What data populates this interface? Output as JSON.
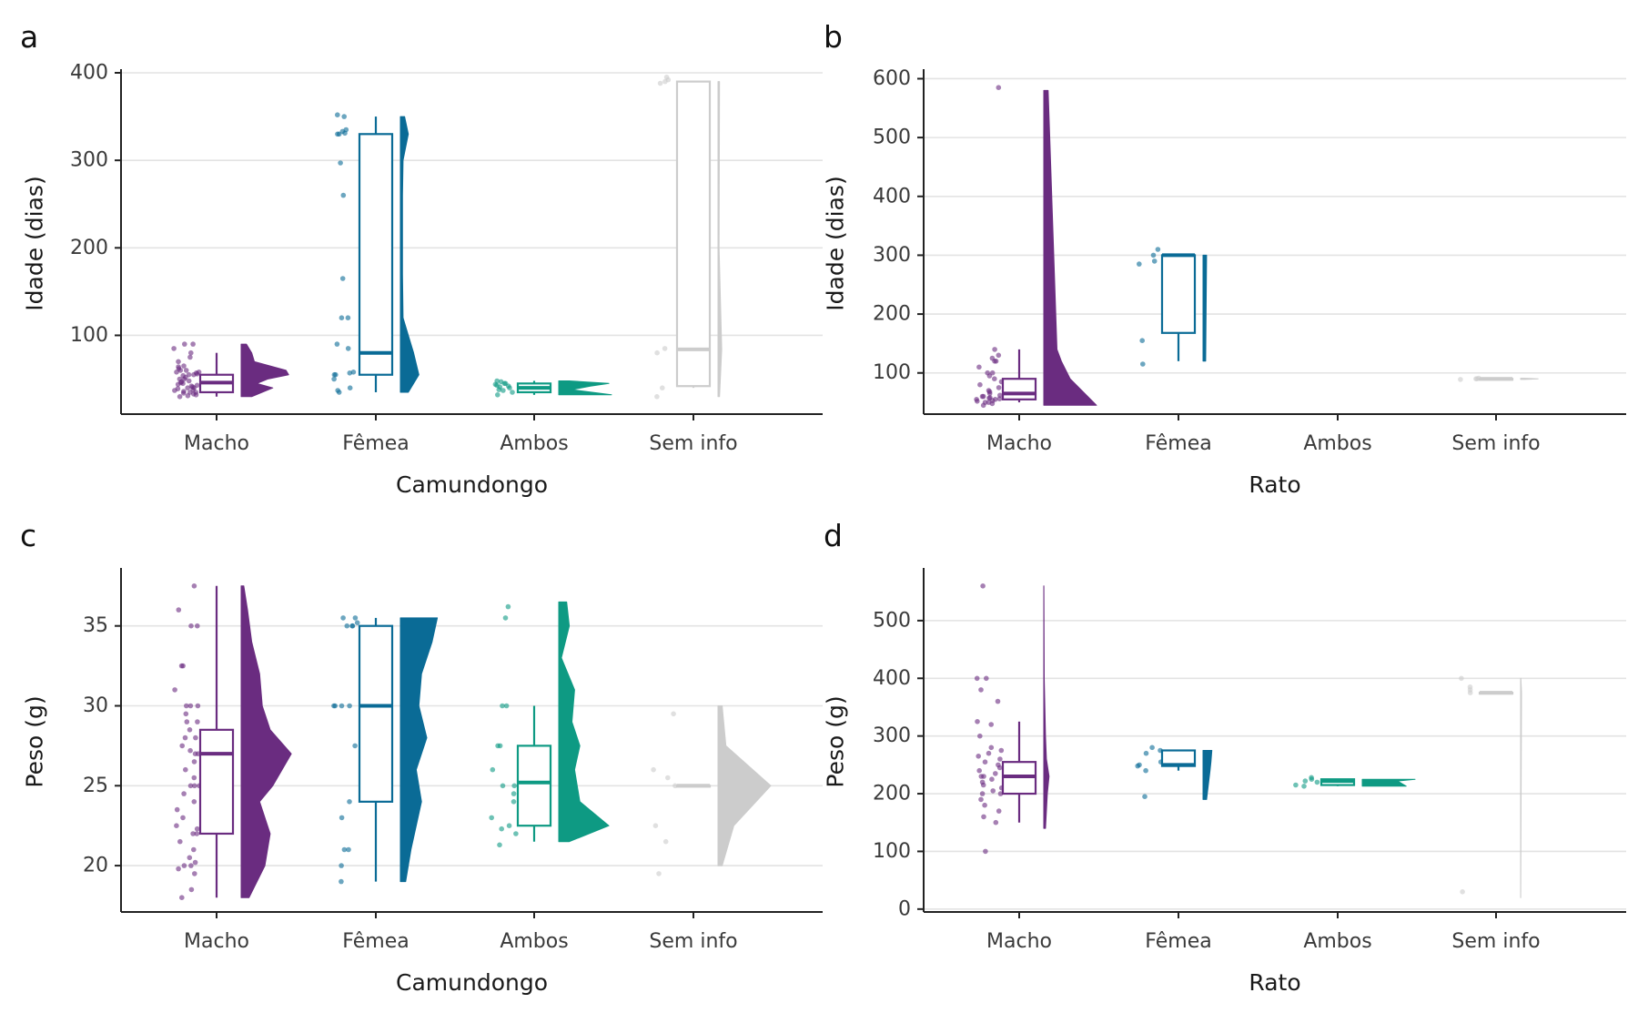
{
  "chart_data": [
    {
      "panel": "a",
      "type": "raincloud",
      "ylabel": "Idade (dias)",
      "xlabel": "Camundongo",
      "categories": [
        "Macho",
        "Fêmea",
        "Ambos",
        "Sem info"
      ],
      "ylim": [
        10,
        400
      ],
      "yticks": [
        100,
        200,
        300,
        400
      ],
      "series": [
        {
          "category": "Macho",
          "color": "#6a2c80",
          "box": {
            "min": 30,
            "q1": 35,
            "median": 46,
            "q3": 55,
            "max": 80
          },
          "density": [
            [
              30,
              0.2
            ],
            [
              40,
              0.6
            ],
            [
              45,
              0.3
            ],
            [
              50,
              0.5
            ],
            [
              55,
              0.9
            ],
            [
              60,
              0.85
            ],
            [
              70,
              0.25
            ],
            [
              80,
              0.2
            ],
            [
              90,
              0.1
            ]
          ],
          "points": [
            30,
            31,
            32,
            33,
            34,
            35,
            35,
            36,
            37,
            38,
            39,
            40,
            40,
            41,
            42,
            43,
            44,
            45,
            46,
            47,
            48,
            50,
            50,
            52,
            54,
            55,
            55,
            56,
            57,
            58,
            58,
            60,
            60,
            62,
            64,
            65,
            70,
            75,
            80,
            85,
            90,
            90
          ]
        },
        {
          "category": "Fêmea",
          "color": "#0a6b96",
          "box": {
            "min": 35,
            "q1": 55,
            "median": 80,
            "q3": 330,
            "max": 350
          },
          "density": [
            [
              35,
              0.15
            ],
            [
              55,
              0.35
            ],
            [
              80,
              0.25
            ],
            [
              120,
              0.05
            ],
            [
              170,
              0.04
            ],
            [
              260,
              0.04
            ],
            [
              300,
              0.05
            ],
            [
              330,
              0.15
            ],
            [
              350,
              0.08
            ]
          ],
          "points": [
            35,
            37,
            40,
            50,
            55,
            55,
            57,
            58,
            85,
            90,
            120,
            120,
            165,
            260,
            297,
            330,
            330,
            331,
            333,
            335,
            350,
            352
          ]
        },
        {
          "category": "Ambos",
          "color": "#0e9a83",
          "box": {
            "min": 32,
            "q1": 35,
            "median": 40,
            "q3": 45,
            "max": 48
          },
          "density": [
            [
              32,
              1.0
            ],
            [
              38,
              0.25
            ],
            [
              42,
              0.6
            ],
            [
              45,
              0.95
            ],
            [
              48,
              0.2
            ]
          ],
          "points": [
            32,
            35,
            37,
            38,
            40,
            41,
            42,
            43,
            44,
            45,
            45,
            47,
            48
          ]
        },
        {
          "category": "Sem info",
          "color": "#cccccc",
          "box": {
            "min": 40,
            "q1": 42,
            "median": 84,
            "q3": 390,
            "max": 390
          },
          "density": [
            [
              30,
              0.03
            ],
            [
              84,
              0.07
            ],
            [
              200,
              0.02
            ],
            [
              390,
              0.03
            ]
          ],
          "points": [
            30,
            40,
            80,
            85,
            388,
            390,
            392,
            395
          ]
        }
      ]
    },
    {
      "panel": "b",
      "type": "raincloud",
      "ylabel": "Idade (dias)",
      "xlabel": "Rato",
      "categories": [
        "Macho",
        "Fêmea",
        "Ambos",
        "Sem info"
      ],
      "ylim": [
        30,
        610
      ],
      "yticks": [
        100,
        200,
        300,
        400,
        500,
        600
      ],
      "series": [
        {
          "category": "Macho",
          "color": "#6a2c80",
          "box": {
            "min": 50,
            "q1": 55,
            "median": 65,
            "q3": 90,
            "max": 140
          },
          "density": [
            [
              45,
              0.06
            ],
            [
              60,
              0.05
            ],
            [
              90,
              0.03
            ],
            [
              120,
              0.02
            ],
            [
              140,
              0.015
            ],
            [
              580,
              0.005
            ]
          ],
          "points": [
            45,
            48,
            50,
            50,
            52,
            53,
            55,
            55,
            56,
            57,
            58,
            60,
            60,
            62,
            65,
            68,
            70,
            75,
            80,
            85,
            90,
            95,
            100,
            100,
            110,
            120,
            120,
            125,
            130,
            140,
            585
          ]
        },
        {
          "category": "Fêmea",
          "color": "#0a6b96",
          "box": {
            "min": 120,
            "q1": 168,
            "median": 300,
            "q3": 300,
            "max": 300
          },
          "density": [
            [
              120,
              0.003
            ],
            [
              300,
              0.004
            ]
          ],
          "points": [
            115,
            155,
            285,
            290,
            300,
            310
          ]
        },
        {
          "category": "Sem info",
          "color": "#cccccc",
          "box": {
            "min": 90,
            "q1": 90,
            "median": 90,
            "q3": 90,
            "max": 90
          },
          "density": [
            [
              89,
              0.005
            ],
            [
              90,
              0.02
            ],
            [
              91,
              0.005
            ]
          ],
          "points": [
            89,
            90,
            90,
            91
          ]
        }
      ]
    },
    {
      "panel": "c",
      "type": "raincloud",
      "ylabel": "Peso (g)",
      "xlabel": "Camundongo",
      "categories": [
        "Macho",
        "Fêmea",
        "Ambos",
        "Sem info"
      ],
      "ylim": [
        17.1,
        38.4
      ],
      "yticks": [
        20,
        25,
        30,
        35
      ],
      "series": [
        {
          "category": "Macho",
          "color": "#6a2c80",
          "box": {
            "min": 18,
            "q1": 22,
            "median": 27,
            "q3": 28.5,
            "max": 37.5
          },
          "density": [
            [
              18,
              0.15
            ],
            [
              20,
              0.45
            ],
            [
              22,
              0.55
            ],
            [
              24,
              0.35
            ],
            [
              25,
              0.6
            ],
            [
              27,
              0.95
            ],
            [
              28.5,
              0.55
            ],
            [
              30,
              0.4
            ],
            [
              32,
              0.35
            ],
            [
              34,
              0.2
            ],
            [
              36,
              0.12
            ],
            [
              37.5,
              0.05
            ]
          ],
          "points": [
            18,
            18.5,
            19.5,
            19.8,
            20,
            20,
            20.2,
            20.5,
            21,
            21.5,
            22,
            22,
            22.3,
            22.5,
            23,
            23.5,
            24,
            24.5,
            25,
            25,
            25,
            25.5,
            26,
            26.5,
            27,
            27,
            27.2,
            27.5,
            28,
            28,
            28.5,
            29,
            29,
            29.5,
            30,
            30,
            30,
            31,
            32.5,
            32.5,
            35,
            35,
            36,
            37.5
          ]
        },
        {
          "category": "Fêmea",
          "color": "#0a6b96",
          "box": {
            "min": 19,
            "q1": 24,
            "median": 30,
            "q3": 35,
            "max": 35.5
          },
          "density": [
            [
              19,
              0.1
            ],
            [
              21,
              0.2
            ],
            [
              24,
              0.4
            ],
            [
              26,
              0.3
            ],
            [
              28,
              0.5
            ],
            [
              30,
              0.35
            ],
            [
              32,
              0.4
            ],
            [
              34,
              0.6
            ],
            [
              35.5,
              0.7
            ]
          ],
          "points": [
            19,
            20,
            21,
            21,
            23,
            24,
            27.5,
            30,
            30,
            30,
            30,
            35,
            35,
            35,
            35.2,
            35.5,
            35.5
          ]
        },
        {
          "category": "Ambos",
          "color": "#0e9a83",
          "box": {
            "min": 21.5,
            "q1": 22.5,
            "median": 25.2,
            "q3": 27.5,
            "max": 30
          },
          "density": [
            [
              21.5,
              0.2
            ],
            [
              22.5,
              0.95
            ],
            [
              24,
              0.4
            ],
            [
              26,
              0.3
            ],
            [
              27.5,
              0.4
            ],
            [
              29,
              0.25
            ],
            [
              31,
              0.3
            ],
            [
              33,
              0.05
            ],
            [
              35,
              0.2
            ],
            [
              36.5,
              0.15
            ]
          ],
          "points": [
            21.3,
            22,
            22.3,
            22.5,
            23,
            24,
            24.5,
            25,
            25,
            26,
            27.5,
            27.5,
            30,
            30,
            35.5,
            36.2
          ]
        },
        {
          "category": "Sem info",
          "color": "#cccccc",
          "box": {
            "min": 25,
            "q1": 25,
            "median": 25,
            "q3": 25,
            "max": 25
          },
          "density": [
            [
              20,
              0.08
            ],
            [
              22.5,
              0.3
            ],
            [
              25,
              1.0
            ],
            [
              27.5,
              0.15
            ],
            [
              30,
              0.08
            ]
          ],
          "points": [
            19.5,
            21.5,
            22.5,
            25,
            25.5,
            26,
            29.5
          ]
        }
      ]
    },
    {
      "panel": "d",
      "type": "raincloud",
      "ylabel": "Peso (g)",
      "xlabel": "Rato",
      "categories": [
        "Macho",
        "Fêmea",
        "Ambos",
        "Sem info"
      ],
      "ylim": [
        -5,
        585
      ],
      "yticks": [
        0,
        100,
        200,
        300,
        400,
        500
      ],
      "series": [
        {
          "category": "Macho",
          "color": "#6a2c80",
          "box": {
            "min": 150,
            "q1": 200,
            "median": 230,
            "q3": 255,
            "max": 325
          },
          "density": [
            [
              140,
              0.002
            ],
            [
              200,
              0.004
            ],
            [
              230,
              0.006
            ],
            [
              260,
              0.003
            ],
            [
              300,
              0.002
            ],
            [
              400,
              0.0005
            ],
            [
              560,
              0.0001
            ]
          ],
          "points": [
            100,
            150,
            160,
            170,
            180,
            190,
            200,
            200,
            205,
            210,
            215,
            220,
            225,
            230,
            230,
            235,
            240,
            245,
            250,
            255,
            260,
            265,
            270,
            275,
            280,
            300,
            320,
            325,
            360,
            380,
            400,
            400,
            560
          ]
        },
        {
          "category": "Fêmea",
          "color": "#0a6b96",
          "box": {
            "min": 240,
            "q1": 248,
            "median": 250,
            "q3": 275,
            "max": 275
          },
          "density": [
            [
              190,
              0.004
            ],
            [
              240,
              0.008
            ],
            [
              255,
              0.009
            ],
            [
              275,
              0.01
            ]
          ],
          "points": [
            195,
            240,
            248,
            250,
            255,
            270,
            275,
            280
          ]
        },
        {
          "category": "Ambos",
          "color": "#0e9a83",
          "box": {
            "min": 213,
            "q1": 215,
            "median": 222,
            "q3": 225,
            "max": 225
          },
          "density": [
            [
              213,
              0.05
            ],
            [
              222,
              0.04
            ],
            [
              225,
              0.06
            ]
          ],
          "points": [
            213,
            215,
            220,
            222,
            225,
            228
          ]
        },
        {
          "category": "Sem info",
          "color": "#cccccc",
          "box": {
            "min": 375,
            "q1": 375,
            "median": 375,
            "q3": 375,
            "max": 375
          },
          "density": [
            [
              20,
              0.0001
            ],
            [
              375,
              0.001
            ],
            [
              400,
              0.0003
            ]
          ],
          "points": [
            30,
            375,
            380,
            385,
            400
          ]
        }
      ]
    }
  ]
}
